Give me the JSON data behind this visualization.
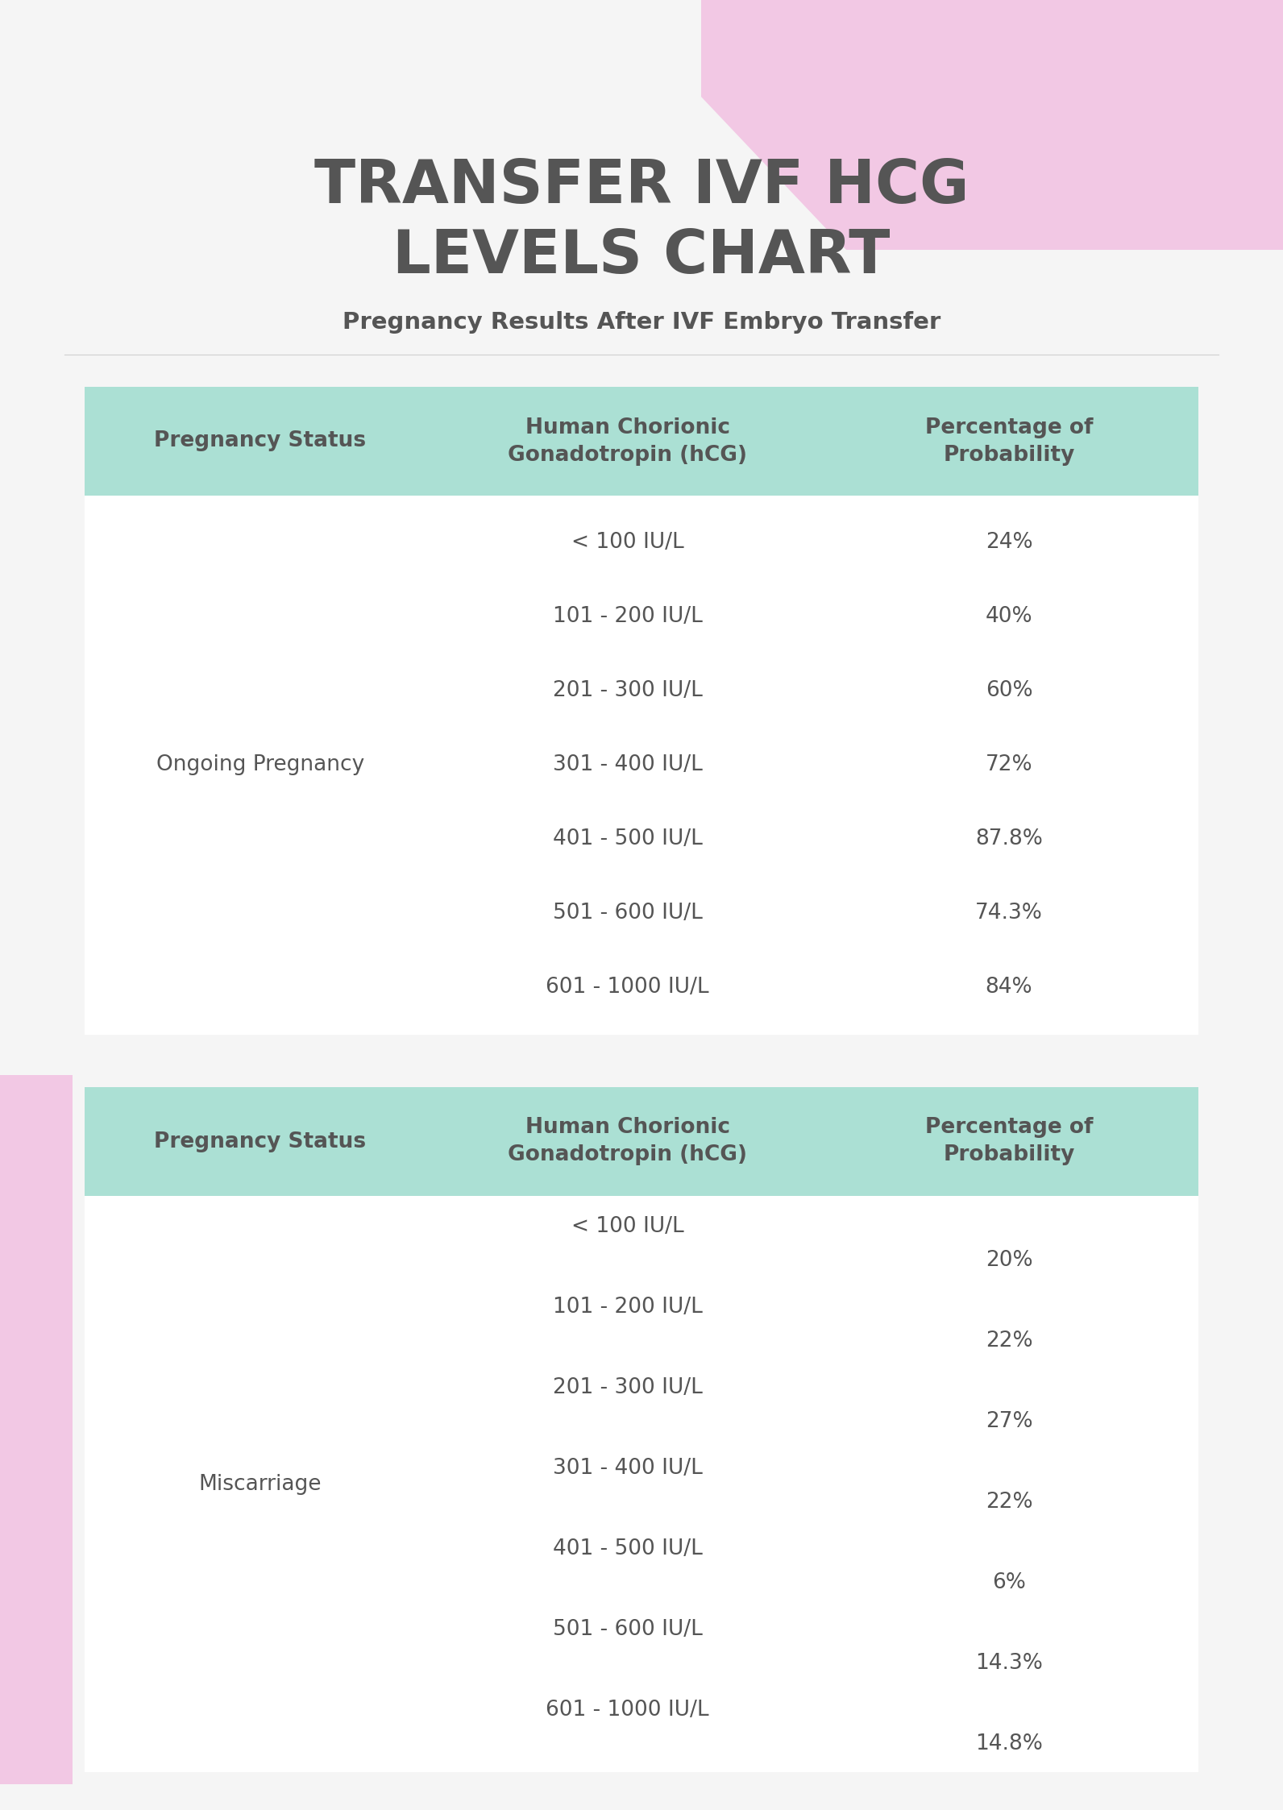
{
  "title": "TRANSFER IVF HCG\nLEVELS CHART",
  "subtitle": "Pregnancy Results After IVF Embryo Transfer",
  "bg_color": "#f5f5f5",
  "pink_decoration_color": "#f2c8e4",
  "pink_left_bar_color": "#f2c8e4",
  "teal_header_color": "#abe0d4",
  "text_color": "#555555",
  "header_text_color": "#555555",
  "table1": {
    "status": "Ongoing Pregnancy",
    "status_row": 3,
    "col1_header": "Pregnancy Status",
    "col2_header": "Human Chorionic\nGonadotropin (hCG)",
    "col3_header": "Percentage of\nProbability",
    "rows": [
      [
        "< 100 IU/L",
        "24%"
      ],
      [
        "101 - 200 IU/L",
        "40%"
      ],
      [
        "201 - 300 IU/L",
        "60%"
      ],
      [
        "301 - 400 IU/L",
        "72%"
      ],
      [
        "401 - 500 IU/L",
        "87.8%"
      ],
      [
        "501 - 600 IU/L",
        "74.3%"
      ],
      [
        "601 - 1000 IU/L",
        "84%"
      ]
    ]
  },
  "table2": {
    "status": "Miscarriage",
    "status_row": 3,
    "col1_header": "Pregnancy Status",
    "col2_header": "Human Chorionic\nGonadotropin (hCG)",
    "col3_header": "Percentage of\nProbability",
    "rows": [
      [
        "< 100 IU/L",
        "20%"
      ],
      [
        "101 - 200 IU/L",
        "22%"
      ],
      [
        "201 - 300 IU/L",
        "27%"
      ],
      [
        "301 - 400 IU/L",
        "22%"
      ],
      [
        "401 - 500 IU/L",
        "6%"
      ],
      [
        "501 - 600 IU/L",
        "14.3%"
      ],
      [
        "601 - 1000 IU/L",
        "14.8%"
      ]
    ]
  }
}
